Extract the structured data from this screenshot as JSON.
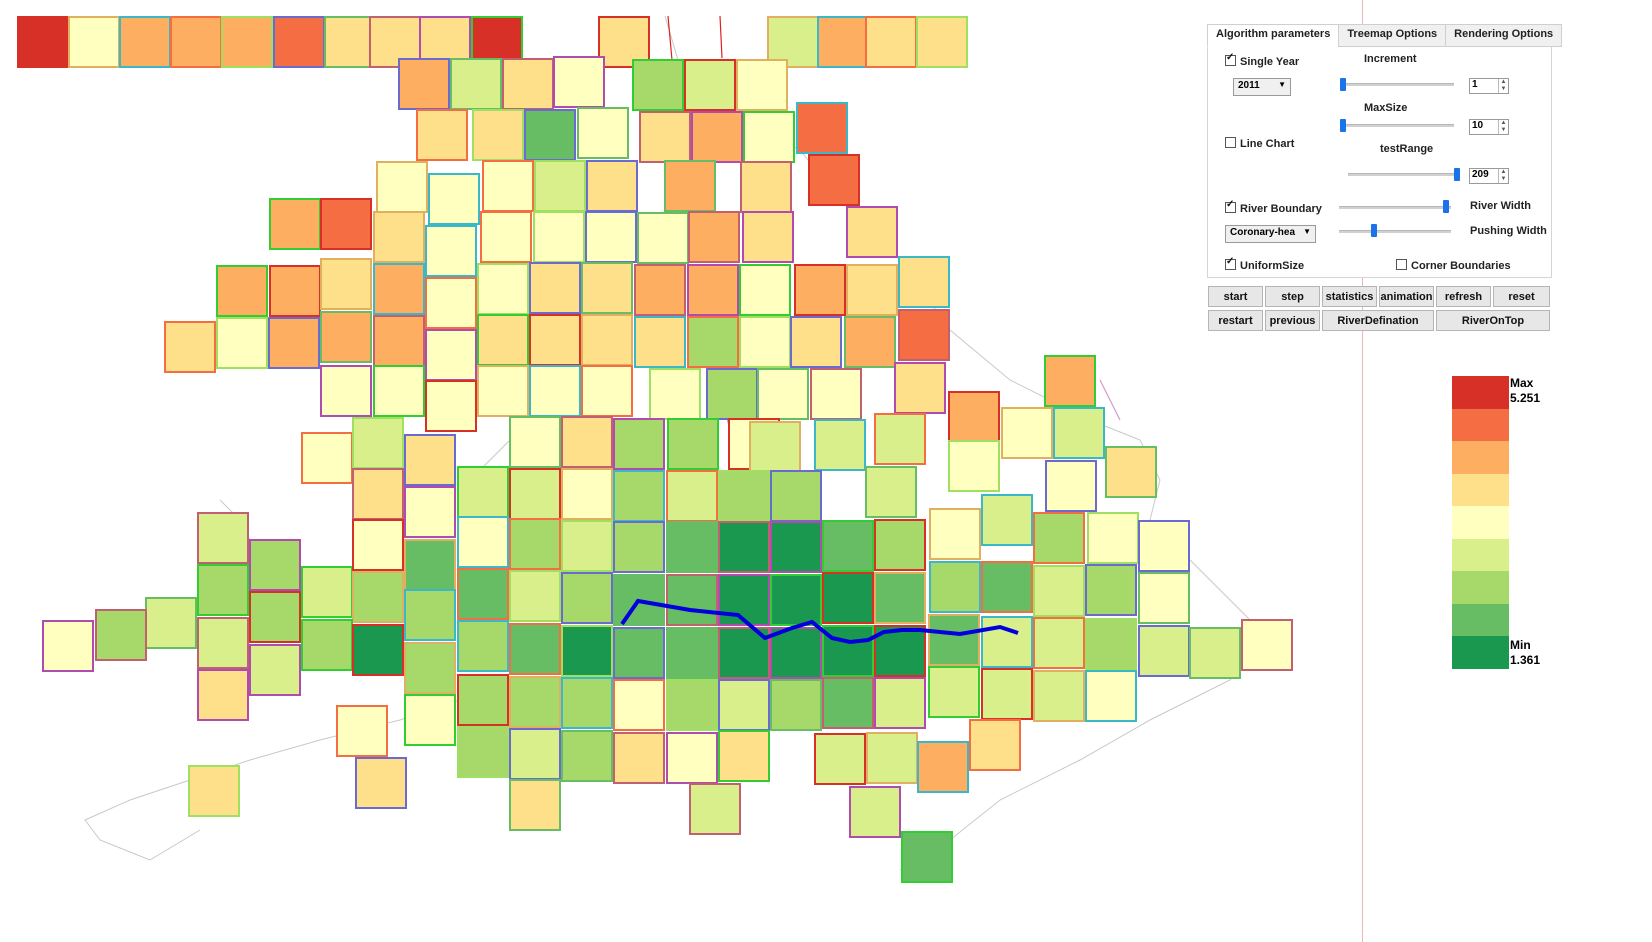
{
  "tabs": [
    "Algorithm parameters",
    "Treemap Options",
    "Rendering Options"
  ],
  "params": {
    "single_year_label": "Single Year",
    "single_year_checked": true,
    "year_value": "2011",
    "increment_label": "Increment",
    "increment_value": "1",
    "increment_level": 0.0,
    "maxsize_label": "MaxSize",
    "maxsize_value": "10",
    "maxsize_level": 0.0,
    "line_chart_label": "Line Chart",
    "line_chart_checked": false,
    "testrange_label": "testRange",
    "testrange_value": "209",
    "testrange_level": 1.0,
    "river_boundary_label": "River Boundary",
    "river_boundary_checked": true,
    "river_width_label": "River Width",
    "river_width_level": 0.98,
    "dataset_value": "Coronary-hea",
    "pushing_width_label": "Pushing Width",
    "pushing_width_level": 0.3,
    "uniform_size_label": "UniformSize",
    "uniform_size_checked": true,
    "corner_boundaries_label": "Corner Boundaries",
    "corner_boundaries_checked": false
  },
  "buttons_row1": [
    "start",
    "step",
    "statistics",
    "animation",
    "refresh",
    "reset"
  ],
  "buttons_row2": [
    "restart",
    "previous",
    "RiverDefination",
    "RiverOnTop"
  ],
  "legend": {
    "max_label": "Max",
    "max_value": "5.251",
    "min_label": "Min",
    "min_value": "1.361",
    "colors": [
      "#d73027",
      "#f46d43",
      "#fdae61",
      "#fee08b",
      "#ffffbf",
      "#d9ef8b",
      "#a6d96a",
      "#66bd63",
      "#1a9850"
    ]
  },
  "map": {
    "fill_colors": [
      "#d73027",
      "#f46d43",
      "#fdae61",
      "#fee08b",
      "#ffffbf",
      "#d9ef8b",
      "#a6d96a",
      "#66bd63",
      "#1a9850"
    ],
    "river_color": "#0000dd"
  }
}
